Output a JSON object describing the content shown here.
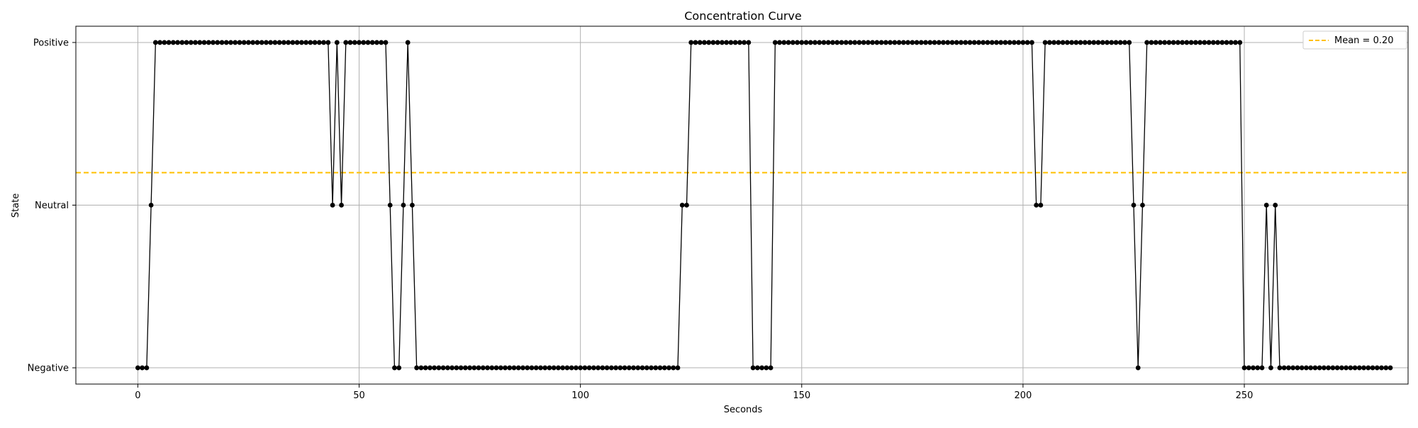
{
  "chart_data": {
    "type": "line",
    "title": "Concentration Curve",
    "xlabel": "Seconds",
    "ylabel": "State",
    "xlim": [
      -14,
      287
    ],
    "ylim": [
      -1.1,
      1.1
    ],
    "x_ticks": [
      0,
      50,
      100,
      150,
      200,
      250
    ],
    "y_ticks": [
      {
        "value": -1,
        "label": "Negative"
      },
      {
        "value": 0,
        "label": "Neutral"
      },
      {
        "value": 1,
        "label": "Positive"
      }
    ],
    "grid": true,
    "legend_position": "top-right",
    "mean": {
      "value": 0.2,
      "label": "Mean = 0.20",
      "color": "#ffc000"
    },
    "series_color": "#000000",
    "series": [
      {
        "x_start": 0,
        "x_step": 1,
        "values": [
          -1,
          -1,
          -1,
          0,
          1,
          1,
          1,
          1,
          1,
          1,
          1,
          1,
          1,
          1,
          1,
          1,
          1,
          1,
          1,
          1,
          1,
          1,
          1,
          1,
          1,
          1,
          1,
          1,
          1,
          1,
          1,
          1,
          1,
          1,
          1,
          1,
          1,
          1,
          1,
          1,
          1,
          1,
          1,
          1,
          0,
          1,
          0,
          1,
          1,
          1,
          1,
          1,
          1,
          1,
          1,
          1,
          1,
          0,
          -1,
          -1,
          0,
          1,
          0,
          -1,
          -1,
          -1,
          -1,
          -1,
          -1,
          -1,
          -1,
          -1,
          -1,
          -1,
          -1,
          -1,
          -1,
          -1,
          -1,
          -1,
          -1,
          -1,
          -1,
          -1,
          -1,
          -1,
          -1,
          -1,
          -1,
          -1,
          -1,
          -1,
          -1,
          -1,
          -1,
          -1,
          -1,
          -1,
          -1,
          -1,
          -1,
          -1,
          -1,
          -1,
          -1,
          -1,
          -1,
          -1,
          -1,
          -1,
          -1,
          -1,
          -1,
          -1,
          -1,
          -1,
          -1,
          -1,
          -1,
          -1,
          -1,
          -1,
          -1,
          0,
          0,
          1,
          1,
          1,
          1,
          1,
          1,
          1,
          1,
          1,
          1,
          1,
          1,
          1,
          1,
          -1,
          -1,
          -1,
          -1,
          -1,
          1,
          1,
          1,
          1,
          1,
          1,
          1,
          1,
          1,
          1,
          1,
          1,
          1,
          1,
          1,
          1,
          1,
          1,
          1,
          1,
          1,
          1,
          1,
          1,
          1,
          1,
          1,
          1,
          1,
          1,
          1,
          1,
          1,
          1,
          1,
          1,
          1,
          1,
          1,
          1,
          1,
          1,
          1,
          1,
          1,
          1,
          1,
          1,
          1,
          1,
          1,
          1,
          1,
          1,
          1,
          1,
          1,
          1,
          1,
          0,
          0,
          1,
          1,
          1,
          1,
          1,
          1,
          1,
          1,
          1,
          1,
          1,
          1,
          1,
          1,
          1,
          1,
          1,
          1,
          1,
          1,
          0,
          -1,
          0,
          1,
          1,
          1,
          1,
          1,
          1,
          1,
          1,
          1,
          1,
          1,
          1,
          1,
          1,
          1,
          1,
          1,
          1,
          1,
          1,
          1,
          1,
          -1,
          -1,
          -1,
          -1,
          -1,
          0,
          -1,
          0,
          -1,
          -1,
          -1,
          -1,
          -1,
          -1,
          -1,
          -1,
          -1,
          -1,
          -1,
          -1,
          -1,
          -1,
          -1,
          -1,
          -1,
          -1,
          -1,
          -1,
          -1,
          -1,
          -1,
          -1,
          -1,
          -1
        ]
      }
    ]
  }
}
